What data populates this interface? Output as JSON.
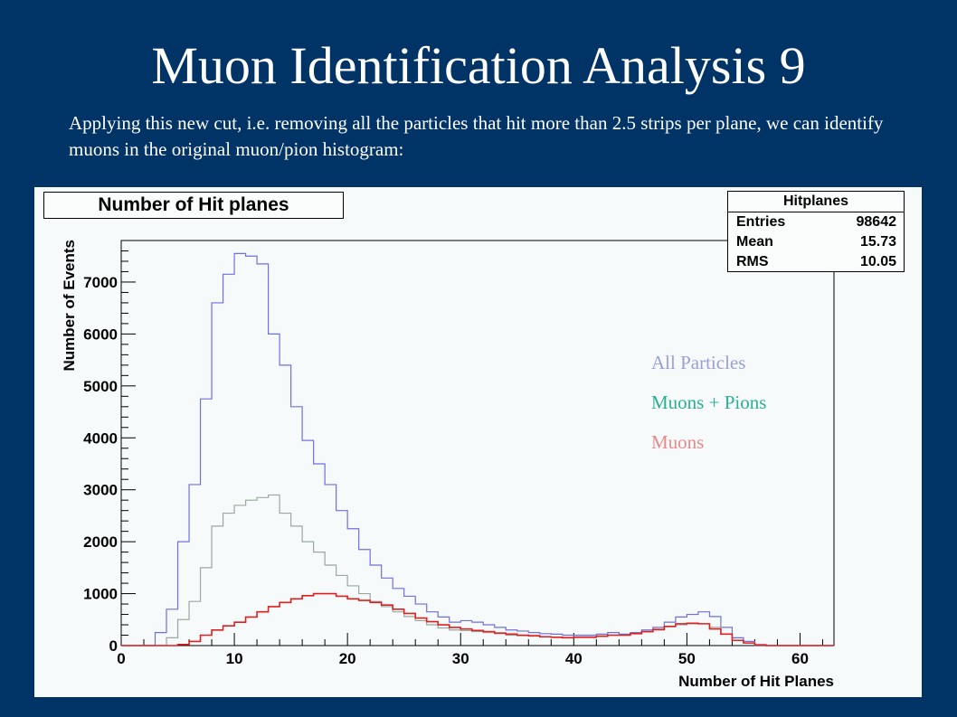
{
  "slide": {
    "title": "Muon Identification Analysis 9",
    "body": "Applying this new cut, i.e. removing all the particles that hit more than 2.5 strips per plane, we can identify muons in the original muon/pion histogram:"
  },
  "colors": {
    "background": "#003366",
    "all_particles": "#6f6fe0",
    "muons_pions": "#9aa89f",
    "muons": "#e02020",
    "legend_all": "#9a9fd8",
    "legend_muons_pions": "#2ab090",
    "legend_muons": "#e88a8a"
  },
  "stats": {
    "title": "Hitplanes",
    "rows": [
      {
        "label": "Entries",
        "value": "98642"
      },
      {
        "label": "Mean",
        "value": "15.73"
      },
      {
        "label": "RMS",
        "value": "10.05"
      }
    ]
  },
  "chart_data": {
    "type": "line",
    "title": "Number of Hit planes",
    "xlabel": "Number of Hit Planes",
    "ylabel": "Number of Events",
    "xlim": [
      0,
      63
    ],
    "ylim": [
      0,
      7800
    ],
    "xticks": [
      0,
      10,
      20,
      30,
      40,
      50,
      60
    ],
    "yticks": [
      0,
      1000,
      2000,
      3000,
      4000,
      5000,
      6000,
      7000
    ],
    "grid": false,
    "legend_placement": "right",
    "bin_edges_start": 0,
    "bin_width": 1,
    "series": [
      {
        "name": "All Particles",
        "color_key": "all_particles",
        "values": [
          0,
          0,
          0,
          250,
          700,
          2000,
          3100,
          4750,
          6600,
          7150,
          7550,
          7500,
          7350,
          6000,
          5400,
          4600,
          3950,
          3500,
          3100,
          2600,
          2250,
          1850,
          1550,
          1300,
          1100,
          950,
          800,
          650,
          550,
          450,
          480,
          450,
          400,
          350,
          300,
          280,
          250,
          230,
          220,
          200,
          200,
          200,
          220,
          250,
          220,
          250,
          300,
          350,
          450,
          550,
          600,
          650,
          560,
          350,
          150,
          80,
          20,
          0,
          0,
          0,
          0,
          0,
          0
        ]
      },
      {
        "name": "Muons + Pions",
        "color_key": "muons_pions",
        "values": [
          0,
          0,
          0,
          0,
          150,
          500,
          850,
          1500,
          2300,
          2550,
          2700,
          2800,
          2850,
          2900,
          2550,
          2300,
          2000,
          1800,
          1550,
          1350,
          1150,
          1000,
          850,
          750,
          650,
          560,
          480,
          400,
          340,
          300,
          290,
          270,
          250,
          230,
          200,
          190,
          180,
          170,
          160,
          160,
          170,
          170,
          190,
          200,
          200,
          230,
          260,
          300,
          360,
          400,
          420,
          420,
          350,
          220,
          100,
          50,
          10,
          0,
          0,
          0,
          0,
          0,
          0
        ]
      },
      {
        "name": "Muons",
        "color_key": "muons",
        "values": [
          0,
          0,
          0,
          0,
          0,
          20,
          80,
          200,
          300,
          380,
          450,
          550,
          650,
          750,
          830,
          900,
          960,
          1000,
          1000,
          950,
          900,
          870,
          830,
          780,
          700,
          620,
          530,
          460,
          400,
          350,
          320,
          290,
          270,
          240,
          220,
          200,
          190,
          170,
          160,
          150,
          160,
          160,
          180,
          200,
          200,
          230,
          270,
          310,
          370,
          420,
          430,
          420,
          320,
          220,
          100,
          50,
          10,
          0,
          0,
          0,
          0,
          0,
          0
        ]
      }
    ]
  }
}
